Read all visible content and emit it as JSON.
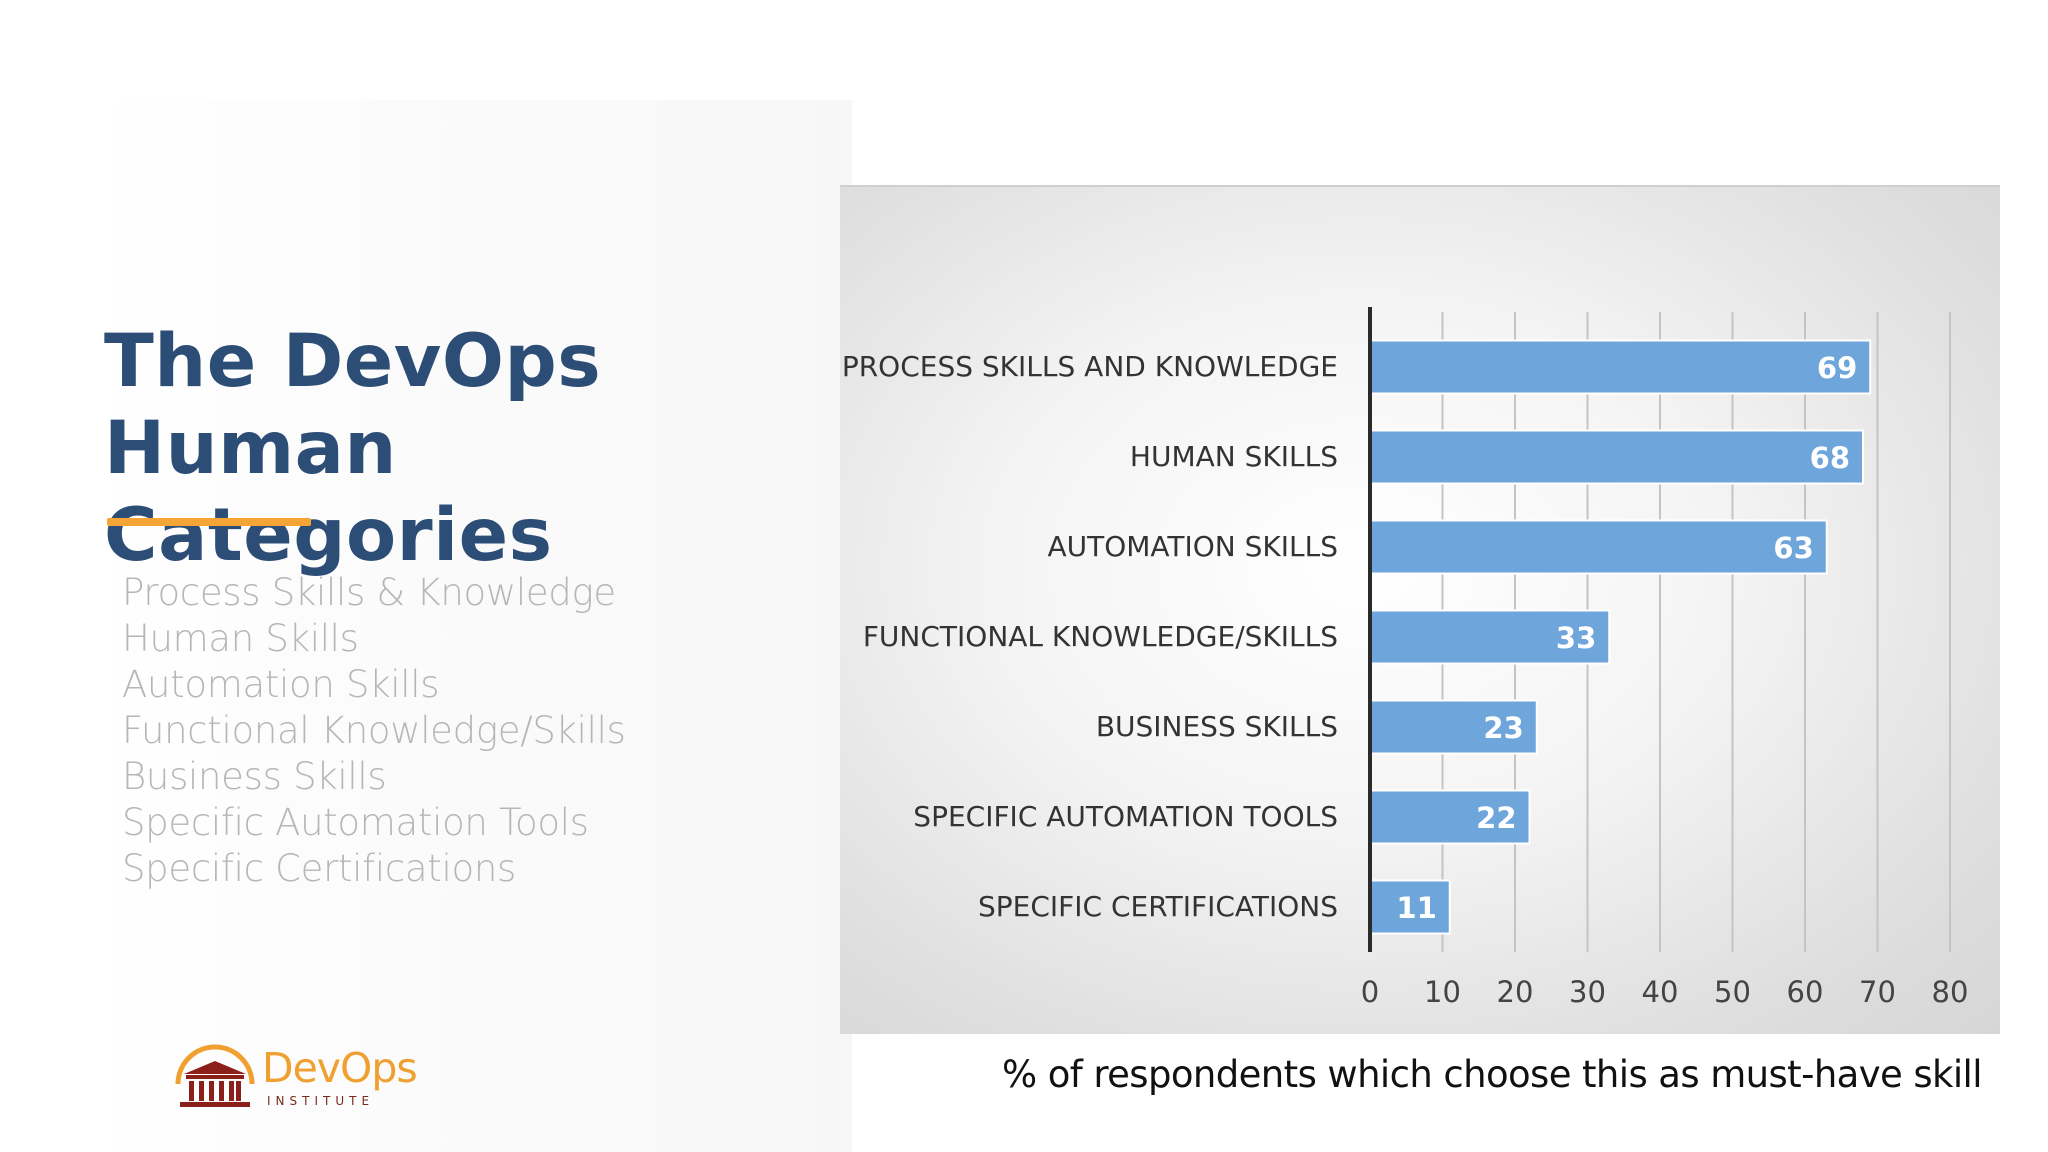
{
  "slide": {
    "title_line1": "The DevOps",
    "title_line2": "Human Categories",
    "categories": [
      "Process Skills & Knowledge",
      "Human Skills",
      "Automation Skills",
      "Functional Knowledge/Skills",
      "Business Skills",
      "Specific Automation Tools",
      "Specific Certifications"
    ],
    "x_axis_caption": "% of respondents which choose this as must-have skill",
    "logo": {
      "name": "DevOps",
      "subtitle": "INSTITUTE"
    }
  },
  "colors": {
    "title": "#2c4d75",
    "accent": "#f5a436",
    "bar": "#6ea6dc",
    "list_text": "#b6b6b6"
  },
  "chart_data": {
    "type": "bar",
    "orientation": "horizontal",
    "categories": [
      "PROCESS SKILLS AND KNOWLEDGE",
      "HUMAN SKILLS",
      "AUTOMATION SKILLS",
      "FUNCTIONAL KNOWLEDGE/SKILLS",
      "BUSINESS SKILLS",
      "SPECIFIC AUTOMATION TOOLS",
      "SPECIFIC CERTIFICATIONS"
    ],
    "values": [
      69,
      68,
      63,
      33,
      23,
      22,
      11
    ],
    "xlim": [
      0,
      80
    ],
    "xticks": [
      "0",
      "10",
      "20",
      "30",
      "40",
      "50",
      "60",
      "70",
      "80"
    ],
    "xlabel": "% of respondents which choose this as must-have skill",
    "data_labels": true,
    "grid": "vertical"
  }
}
